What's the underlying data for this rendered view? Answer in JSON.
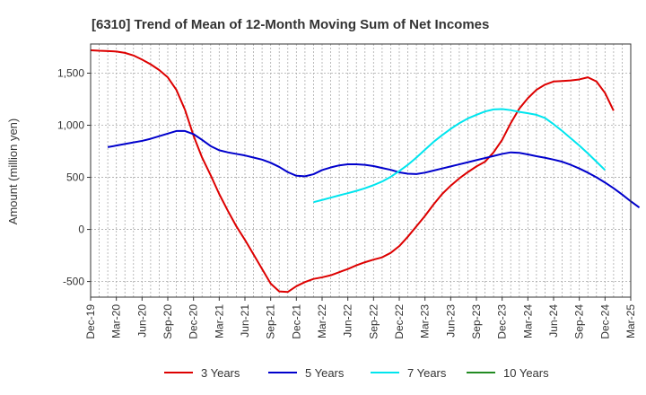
{
  "chart_data": {
    "type": "line",
    "title": "[6310]  Trend of Mean of 12-Month Moving Sum of Net Incomes",
    "ylabel": "Amount (million yen)",
    "xlabel": "",
    "ylim": [
      -650,
      1780
    ],
    "yticks": [
      -500,
      0,
      500,
      1000,
      1500
    ],
    "ytick_labels": [
      "-500",
      "0",
      "500",
      "1,000",
      "1,500"
    ],
    "x_start": "2019-12",
    "x_end": "2025-03",
    "xtick_labels": [
      "Dec-19",
      "Mar-20",
      "Jun-20",
      "Sep-20",
      "Dec-20",
      "Mar-21",
      "Jun-21",
      "Sep-21",
      "Dec-21",
      "Mar-22",
      "Jun-22",
      "Sep-22",
      "Dec-22",
      "Mar-23",
      "Jun-23",
      "Sep-23",
      "Dec-23",
      "Mar-24",
      "Jun-24",
      "Sep-24",
      "Dec-24",
      "Mar-25"
    ],
    "grid": true,
    "legend_position": "bottom",
    "series": [
      {
        "name": "3 Years",
        "color": "#dd0000",
        "start": "2019-12",
        "values": [
          1720,
          1715,
          1712,
          1708,
          1695,
          1670,
          1630,
          1585,
          1530,
          1460,
          1340,
          1150,
          900,
          690,
          520,
          340,
          180,
          30,
          -100,
          -240,
          -380,
          -520,
          -595,
          -600,
          -545,
          -505,
          -475,
          -460,
          -440,
          -410,
          -380,
          -345,
          -315,
          -290,
          -268,
          -225,
          -160,
          -70,
          30,
          130,
          240,
          340,
          420,
          490,
          550,
          605,
          650,
          740,
          860,
          1020,
          1160,
          1260,
          1340,
          1390,
          1420,
          1425,
          1430,
          1440,
          1460,
          1420,
          1310,
          1140
        ]
      },
      {
        "name": "5 Years",
        "color": "#0000cc",
        "start": "2020-02",
        "values": [
          790,
          805,
          820,
          835,
          850,
          870,
          895,
          920,
          945,
          945,
          915,
          860,
          800,
          760,
          740,
          725,
          710,
          690,
          670,
          640,
          600,
          550,
          515,
          510,
          530,
          570,
          595,
          615,
          625,
          625,
          620,
          608,
          590,
          572,
          548,
          535,
          532,
          545,
          565,
          585,
          605,
          625,
          645,
          665,
          685,
          705,
          725,
          740,
          735,
          720,
          703,
          688,
          670,
          650,
          620,
          585,
          545,
          500,
          450,
          395,
          335,
          270,
          210
        ]
      },
      {
        "name": "7 Years",
        "color": "#00e5ee",
        "start": "2022-02",
        "values": [
          262,
          283,
          305,
          327,
          348,
          370,
          395,
          425,
          460,
          505,
          560,
          620,
          690,
          765,
          840,
          905,
          965,
          1020,
          1065,
          1100,
          1132,
          1152,
          1155,
          1145,
          1128,
          1115,
          1100,
          1070,
          1010,
          945,
          875,
          805,
          730,
          650,
          570
        ]
      },
      {
        "name": "10 Years",
        "color": "#228b22",
        "start": "2019-12",
        "values": []
      }
    ]
  }
}
